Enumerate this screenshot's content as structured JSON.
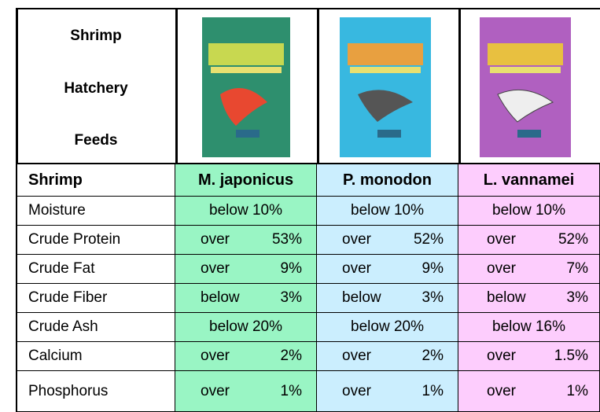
{
  "header": {
    "title_lines": [
      "Shrimp",
      "Hatchery",
      "Feeds"
    ]
  },
  "table": {
    "columns": [
      "Shrimp",
      "M. japonicus",
      "P. monodon",
      "L. vannamei"
    ],
    "rows": [
      [
        "Moisture",
        "below 10%",
        "below 10%",
        "below 10%"
      ],
      [
        "Crude Protein",
        [
          "over",
          "53%"
        ],
        [
          "over",
          "52%"
        ],
        [
          "over",
          "52%"
        ]
      ],
      [
        "Crude Fat",
        [
          "over",
          "9%"
        ],
        [
          "over",
          "9%"
        ],
        [
          "over",
          "7%"
        ]
      ],
      [
        "Crude Fiber",
        [
          "below",
          "3%"
        ],
        [
          "below",
          "3%"
        ],
        [
          "below",
          "3%"
        ]
      ],
      [
        "Crude Ash",
        "below 20%",
        "below 20%",
        "below 16%"
      ],
      [
        "Calcium",
        [
          "over",
          "2%"
        ],
        [
          "over",
          "2%"
        ],
        [
          "over",
          "1.5%"
        ]
      ],
      [
        "Phosphorus",
        [
          "over",
          "1%"
        ],
        [
          "over",
          "1%"
        ],
        [
          "over",
          "1%"
        ]
      ]
    ]
  }
}
